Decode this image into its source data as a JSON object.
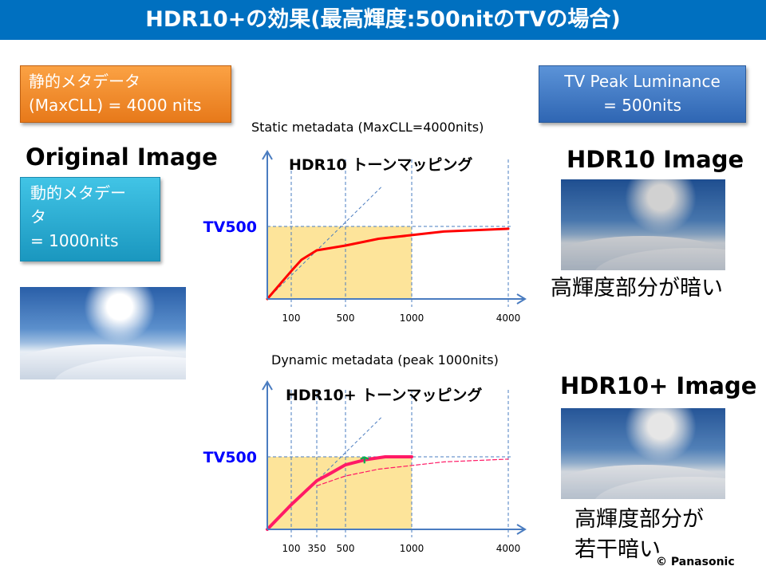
{
  "title": "HDR10+の効果(最高輝度:500nitのTVの場合)",
  "static_box": {
    "line1": "静的メタデータ",
    "line2": "(MaxCLL) = 4000 nits"
  },
  "tv_box": {
    "line1": "TV Peak Luminance",
    "line2": "= 500nits"
  },
  "dynamic_box": {
    "line1": "動的メタデー",
    "line2": "タ",
    "line3": " = 1000nits"
  },
  "original_label": "Original Image",
  "hdr10_label": "HDR10 Image",
  "hdr10_caption": "高輝度部分が暗い",
  "hdr10plus_label": "HDR10+ Image",
  "hdr10plus_caption1": "高輝度部分が",
  "hdr10plus_caption2": "若干暗い",
  "copyright": "© Panasonic",
  "colors": {
    "title_bar": "#0070c0",
    "static_box": "#f08a24",
    "tv_box": "#3f78c4",
    "dynamic_box": "#27aed6",
    "curve_static": "#ff0000",
    "curve_dynamic": "#ff1a66",
    "fill": "#fde49a",
    "tv500": "#0000ff",
    "arrow": "#00b050"
  },
  "chart_data": [
    {
      "type": "line",
      "caption": "Static metadata (MaxCLL=4000nits)",
      "title": "HDR10 トーンマッピング",
      "ref_label": "TV500",
      "ref_value": 500,
      "xticks": [
        100,
        500,
        1000,
        4000
      ],
      "series": [
        {
          "style": "solid",
          "x": [
            0,
            100,
            200,
            350,
            500,
            750,
            1000,
            2000,
            4000
          ],
          "y": [
            0,
            192,
            270,
            335,
            368,
            415,
            440,
            465,
            484
          ]
        }
      ],
      "identity_line": true,
      "fill_to": 1000
    },
    {
      "type": "line",
      "caption": "Dynamic metadata (peak 1000nits)",
      "title": "HDR10+ トーンマッピング",
      "ref_label": "TV500",
      "ref_value": 500,
      "xticks": [
        100,
        350,
        500,
        1000,
        4000
      ],
      "series": [
        {
          "style": "solid",
          "x": [
            0,
            100,
            350,
            420,
            500,
            650,
            800,
            1000
          ],
          "y": [
            0,
            170,
            335,
            385,
            445,
            480,
            500,
            500
          ]
        },
        {
          "style": "dashed",
          "x": [
            350,
            500,
            750,
            1000,
            2000,
            4000
          ],
          "y": [
            300,
            368,
            415,
            440,
            465,
            484
          ]
        }
      ],
      "identity_line": true,
      "fill_to": 1000,
      "arrow_at": 800
    }
  ]
}
